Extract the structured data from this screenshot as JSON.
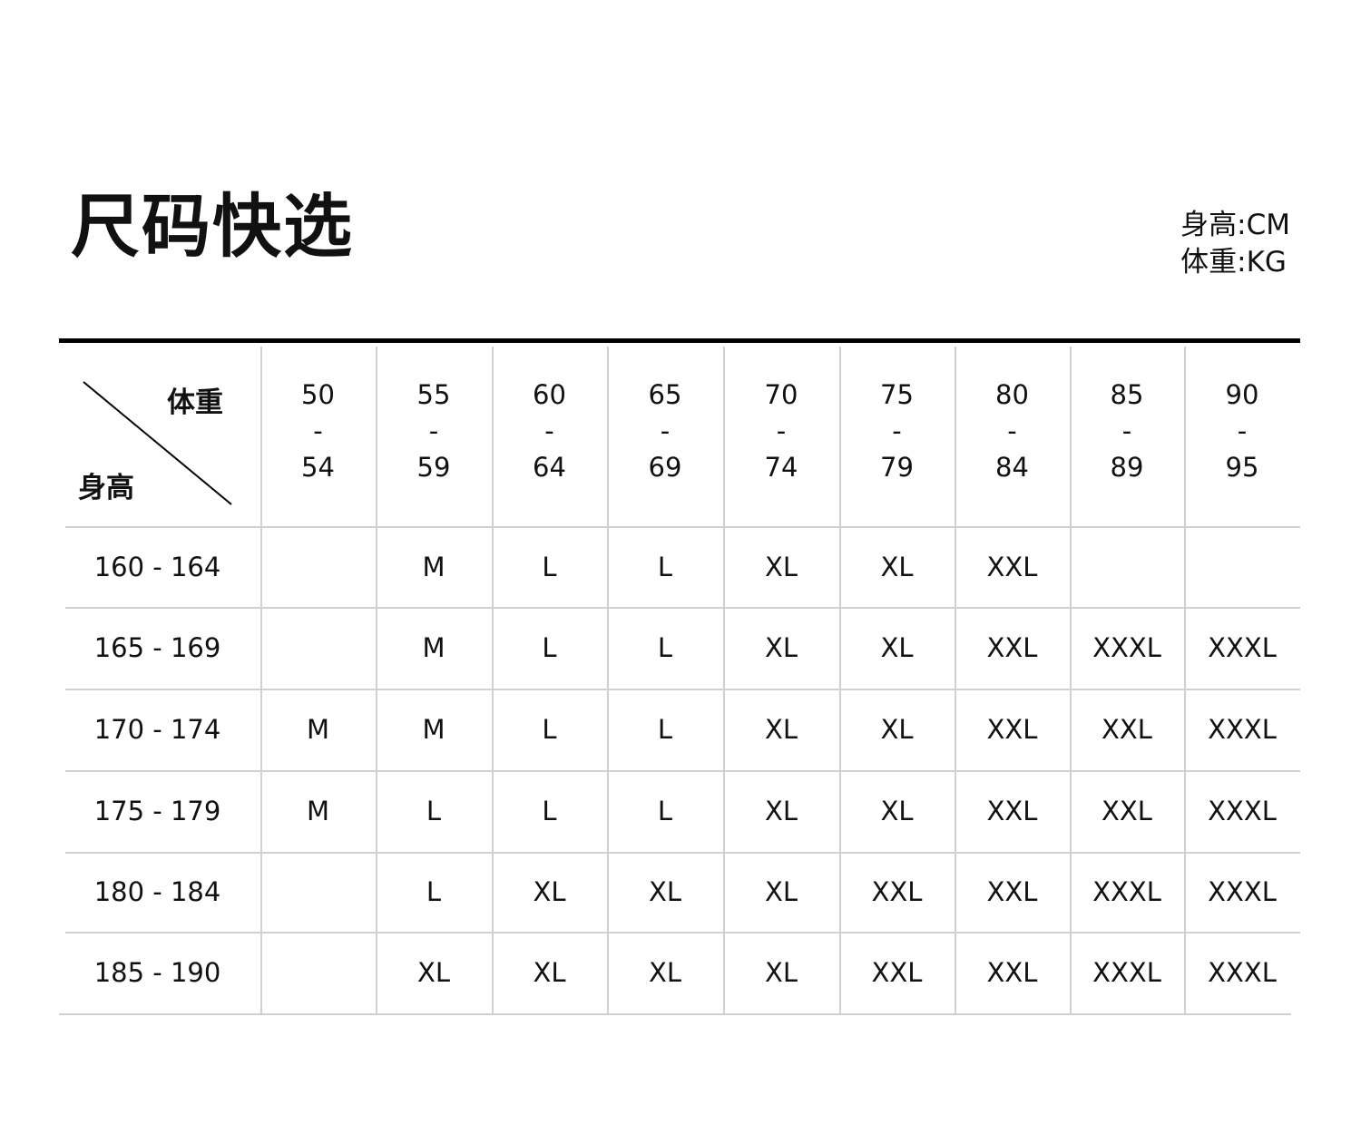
{
  "title": "尺码快选",
  "units": {
    "height": "身高:CM",
    "weight": "体重:KG"
  },
  "table": {
    "corner_weight": "体重",
    "corner_height": "身高",
    "weight_columns": [
      [
        "50",
        "-",
        "54"
      ],
      [
        "55",
        "-",
        "59"
      ],
      [
        "60",
        "-",
        "64"
      ],
      [
        "65",
        "-",
        "69"
      ],
      [
        "70",
        "-",
        "74"
      ],
      [
        "75",
        "-",
        "79"
      ],
      [
        "80",
        "-",
        "84"
      ],
      [
        "85",
        "-",
        "89"
      ],
      [
        "90",
        "-",
        "95"
      ]
    ],
    "rows": [
      {
        "height": "160 - 164",
        "sizes": [
          "",
          "M",
          "L",
          "L",
          "XL",
          "XL",
          "XXL",
          "",
          ""
        ]
      },
      {
        "height": "165 - 169",
        "sizes": [
          "",
          "M",
          "L",
          "L",
          "XL",
          "XL",
          "XXL",
          "XXXL",
          "XXXL"
        ]
      },
      {
        "height": "170 - 174",
        "sizes": [
          "M",
          "M",
          "L",
          "L",
          "XL",
          "XL",
          "XXL",
          "XXL",
          "XXXL"
        ]
      },
      {
        "height": "175 - 179",
        "sizes": [
          "M",
          "L",
          "L",
          "L",
          "XL",
          "XL",
          "XXL",
          "XXL",
          "XXXL"
        ]
      },
      {
        "height": "180 - 184",
        "sizes": [
          "",
          "L",
          "XL",
          "XL",
          "XL",
          "XXL",
          "XXL",
          "XXXL",
          "XXXL"
        ]
      },
      {
        "height": "185 - 190",
        "sizes": [
          "",
          "XL",
          "XL",
          "XL",
          "XL",
          "XXL",
          "XXL",
          "XXXL",
          "XXXL"
        ]
      }
    ]
  },
  "colors": {
    "rule": "#000000",
    "grid": "#d0d0d0",
    "text": "#111111"
  }
}
